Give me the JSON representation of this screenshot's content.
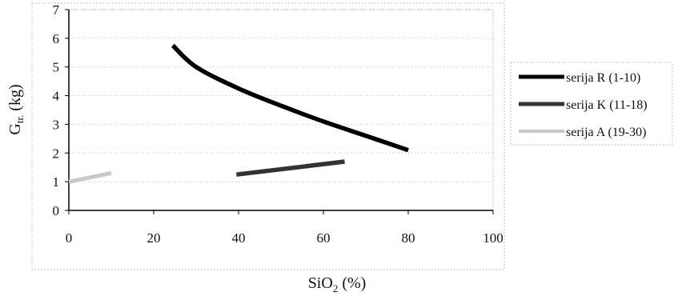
{
  "chart_data": {
    "type": "line",
    "xlabel": {
      "main": "SiO",
      "sub": "2",
      "rest": " (%)"
    },
    "ylabel": {
      "main": "G",
      "sub": "tr.",
      "rest": " (kg)"
    },
    "xlim": [
      0,
      100
    ],
    "ylim": [
      0,
      7
    ],
    "xticks": [
      "0",
      "20",
      "40",
      "60",
      "80",
      "100"
    ],
    "yticks": [
      "0",
      "1",
      "2",
      "3",
      "4",
      "5",
      "6",
      "7"
    ],
    "grid": true,
    "legend_position": "right",
    "series": [
      {
        "name": "serija R (1-10)",
        "color": "#000000",
        "x": [
          24.5,
          30,
          40,
          50,
          60,
          70,
          80
        ],
        "y": [
          5.75,
          5.0,
          4.25,
          3.65,
          3.1,
          2.6,
          2.1
        ]
      },
      {
        "name": "serija K (11-18)",
        "color": "#333333",
        "x": [
          39.5,
          65
        ],
        "y": [
          1.25,
          1.7
        ]
      },
      {
        "name": "serija A (19-30)",
        "color": "#c8c8c8",
        "x": [
          0,
          10
        ],
        "y": [
          1.0,
          1.3
        ]
      }
    ]
  }
}
